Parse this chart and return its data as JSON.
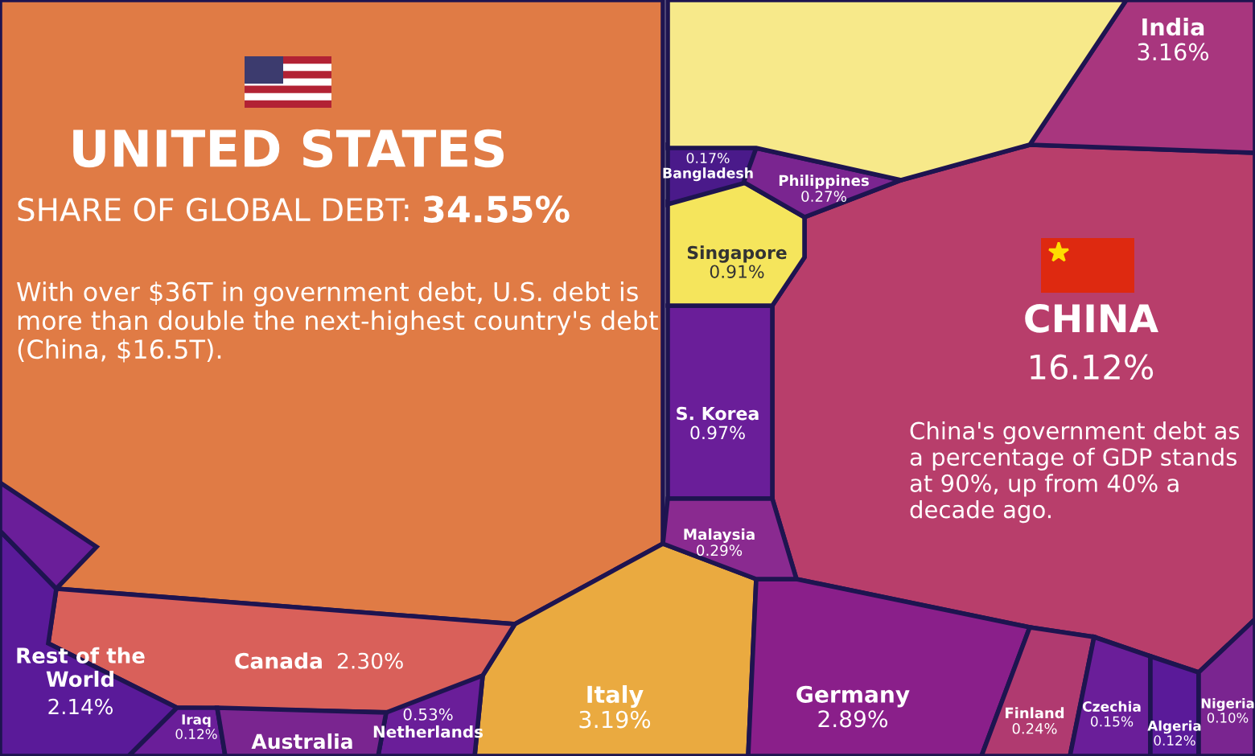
{
  "chart_data": {
    "type": "other",
    "categories": [
      "UNITED STATES",
      "CHINA",
      "India",
      "Italy",
      "Germany",
      "Canada",
      "Rest of the World",
      "S. Korea",
      "Singapore",
      "Netherlands",
      "Malaysia",
      "Philippines",
      "Finland",
      "Bangladesh",
      "Czechia",
      "Iraq",
      "Algeria",
      "Nigeria",
      "Australia",
      null,
      null
    ],
    "values": [
      34.55,
      16.12,
      3.16,
      3.19,
      2.89,
      2.3,
      2.14,
      0.97,
      0.91,
      0.53,
      0.29,
      0.27,
      0.24,
      0.17,
      0.15,
      0.12,
      0.12,
      0.1,
      null,
      null,
      null
    ],
    "value_labels": [
      "34.55%",
      "16.12%",
      "3.16%",
      "3.19%",
      "2.89%",
      "2.30%",
      "2.14%",
      "0.97%",
      "0.91%",
      "0.53%",
      "0.29%",
      "0.27%",
      "0.24%",
      "0.17%",
      "0.15%",
      "0.12%",
      "0.12%",
      "0.10%",
      null,
      null,
      null
    ],
    "colors": [
      "#e07b45",
      "#b83e6b",
      "#a8367e",
      "#eaaa40",
      "#8a1f8a",
      "#d9605a",
      "#5a1a99",
      "#6a1e99",
      "#f5e55c",
      "#6a1e99",
      "#8a2a90",
      "#7a2590",
      "#b03a70",
      "#4a1a8a",
      "#6a1e99",
      "#6a1e99",
      "#5a1a99",
      "#7a2590",
      "#7a2590",
      "#f7e98a",
      "#6a1e99"
    ],
    "annotations": [
      "SHARE OF GLOBAL DEBT:",
      "With over $36T in government debt, U.S. debt is more than double the next-highest country's debt (China, $16.5T).",
      "China's government debt as a percentage of GDP stands at 90%, up from 40% a decade ago."
    ]
  }
}
